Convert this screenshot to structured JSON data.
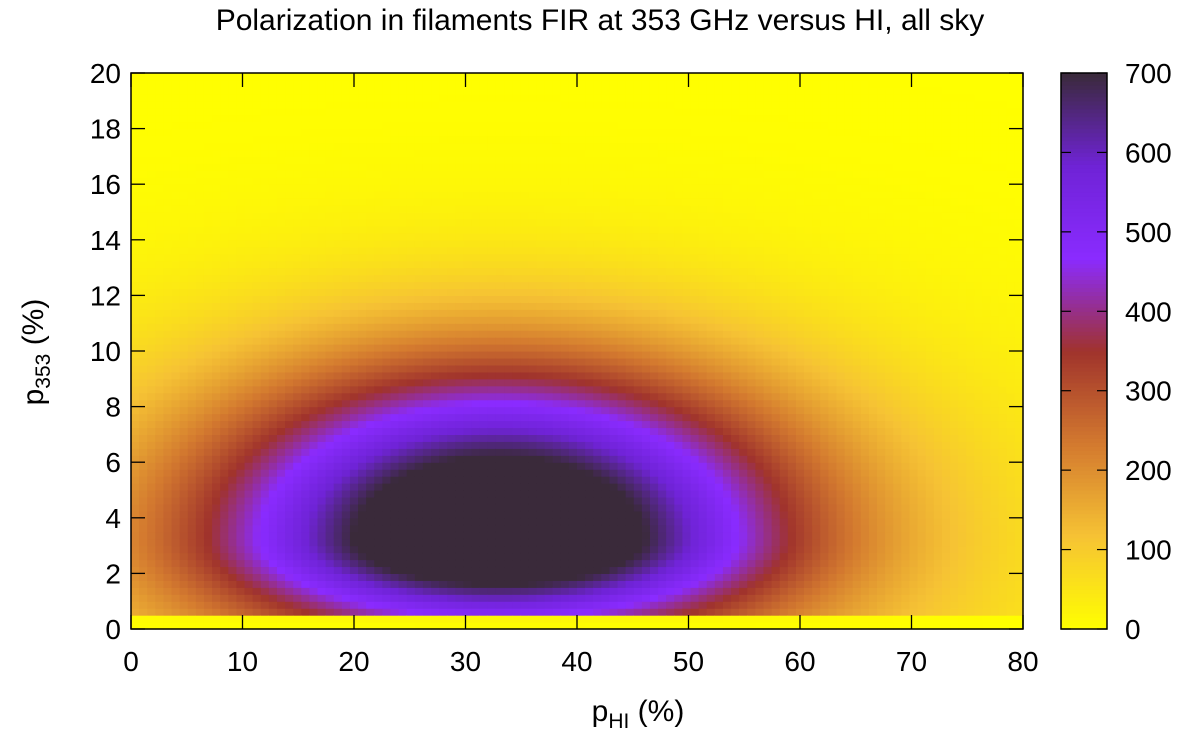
{
  "chart_data": {
    "type": "heatmap",
    "title": "Polarization in filaments FIR at 353 GHz versus HI, all sky",
    "xlabel": {
      "base": "p",
      "sub": "HI",
      "suffix": " (%)"
    },
    "ylabel": {
      "base": "p",
      "sub": "353",
      "suffix": " (%)"
    },
    "xlim": [
      0,
      80
    ],
    "ylim": [
      0,
      20
    ],
    "x_ticks": [
      0,
      10,
      20,
      30,
      40,
      50,
      60,
      70,
      80
    ],
    "y_ticks": [
      0,
      2,
      4,
      6,
      8,
      10,
      12,
      14,
      16,
      18,
      20
    ],
    "colorbar": {
      "range": [
        0,
        700
      ],
      "ticks": [
        0,
        100,
        200,
        300,
        400,
        500,
        600,
        700
      ],
      "colors": [
        "#ffff00",
        "#f6c334",
        "#d3792f",
        "#a0332c",
        "#8a2bff",
        "#6f23d6",
        "#3a2a3a"
      ]
    },
    "peak": {
      "x": 33,
      "y": 3.3,
      "value": 700
    },
    "grid": false
  }
}
